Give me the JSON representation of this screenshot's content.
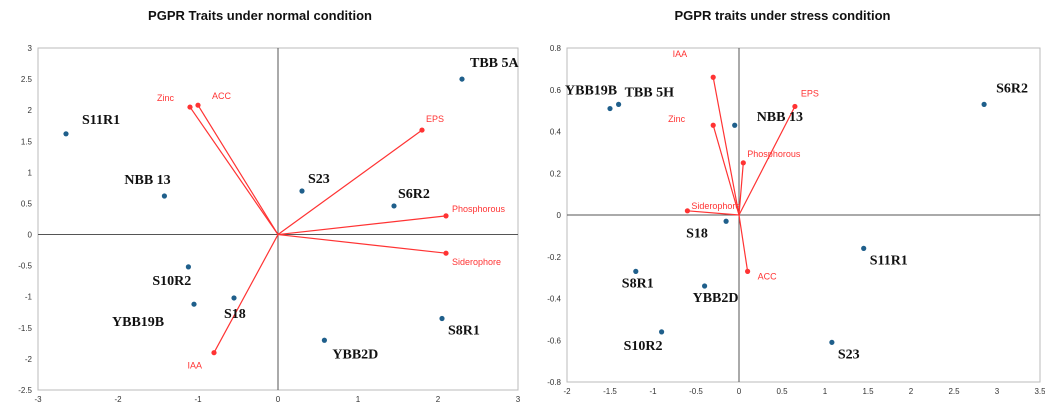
{
  "colors": {
    "points": "#1f5f8b",
    "vectors": "#ff3333",
    "axis": "#555555",
    "frame": "#bbbbbb"
  },
  "chart_data": [
    {
      "type": "scatter",
      "title": "PGPR Traits under normal condition",
      "xlim": [
        -3,
        3
      ],
      "ylim": [
        -2.5,
        3
      ],
      "xticks": [
        -3,
        -2,
        -1,
        0,
        1,
        2,
        3
      ],
      "yticks": [
        3,
        2.5,
        2,
        1.5,
        1,
        0.5,
        0,
        -0.5,
        -1,
        -1.5,
        -2,
        -2.5
      ],
      "xtick_labels": [
        "-3",
        "-2",
        "-1",
        "0",
        "1",
        "2",
        "3"
      ],
      "ytick_labels": [
        "3",
        "2.5",
        "2",
        "1.5",
        "1",
        "0.5",
        "0",
        "-0.5",
        "-1",
        "-1.5",
        "-2",
        "-2.5"
      ],
      "grid": false,
      "points": [
        {
          "label": "TBB 5A",
          "x": 2.3,
          "y": 2.5
        },
        {
          "label": "S11R1",
          "x": -2.65,
          "y": 1.62
        },
        {
          "label": "NBB 13",
          "x": -1.42,
          "y": 0.62
        },
        {
          "label": "S23",
          "x": 0.3,
          "y": 0.7
        },
        {
          "label": "S6R2",
          "x": 1.45,
          "y": 0.46
        },
        {
          "label": "S10R2",
          "x": -1.12,
          "y": -0.52
        },
        {
          "label": "YBB19B",
          "x": -1.05,
          "y": -1.12
        },
        {
          "label": "S18",
          "x": -0.55,
          "y": -1.02
        },
        {
          "label": "S8R1",
          "x": 2.05,
          "y": -1.35
        },
        {
          "label": "YBB2D",
          "x": 0.58,
          "y": -1.7
        }
      ],
      "vectors": [
        {
          "label": "Zinc",
          "x": -1.1,
          "y": 2.05
        },
        {
          "label": "ACC",
          "x": -1.0,
          "y": 2.08
        },
        {
          "label": "EPS",
          "x": 1.8,
          "y": 1.68
        },
        {
          "label": "Phosphorous",
          "x": 2.1,
          "y": 0.3
        },
        {
          "label": "Siderophore",
          "x": 2.1,
          "y": -0.3
        },
        {
          "label": "IAA",
          "x": -0.8,
          "y": -1.9
        }
      ]
    },
    {
      "type": "scatter",
      "title": "PGPR traits under stress condition",
      "xlim": [
        -2,
        3.5
      ],
      "ylim": [
        -0.8,
        0.8
      ],
      "xticks": [
        -2,
        -1.5,
        -1,
        -0.5,
        0,
        0.5,
        1,
        1.5,
        2,
        2.5,
        3,
        3.5
      ],
      "yticks": [
        0.8,
        0.6,
        0.4,
        0.2,
        0,
        -0.2,
        -0.4,
        -0.6,
        -0.8
      ],
      "xtick_labels": [
        "-2",
        "-1.5",
        "-1",
        "-0.5",
        "0",
        "0.5",
        "1",
        "1.5",
        "2",
        "2.5",
        "3",
        "3.5"
      ],
      "ytick_labels": [
        "0.8",
        "0.6",
        "0.4",
        "0.2",
        "0",
        "-0.2",
        "-0.4",
        "-0.6",
        "-0.8"
      ],
      "grid": false,
      "points": [
        {
          "label": "YBB19B",
          "x": -1.5,
          "y": 0.51
        },
        {
          "label": "TBB 5H",
          "x": -1.4,
          "y": 0.53
        },
        {
          "label": "NBB 13",
          "x": -0.05,
          "y": 0.43
        },
        {
          "label": "S6R2",
          "x": 2.85,
          "y": 0.53
        },
        {
          "label": "S18",
          "x": -0.15,
          "y": -0.03
        },
        {
          "label": "S11R1",
          "x": 1.45,
          "y": -0.16
        },
        {
          "label": "S8R1",
          "x": -1.2,
          "y": -0.27
        },
        {
          "label": "YBB2D",
          "x": -0.4,
          "y": -0.34
        },
        {
          "label": "S10R2",
          "x": -0.9,
          "y": -0.56
        },
        {
          "label": "S23",
          "x": 1.08,
          "y": -0.61
        }
      ],
      "vectors": [
        {
          "label": "IAA",
          "x": -0.3,
          "y": 0.66
        },
        {
          "label": "EPS",
          "x": 0.65,
          "y": 0.52
        },
        {
          "label": "Zinc",
          "x": -0.3,
          "y": 0.43
        },
        {
          "label": "Phosphorous",
          "x": 0.05,
          "y": 0.25
        },
        {
          "label": "Siderophore",
          "x": -0.6,
          "y": 0.02
        },
        {
          "label": "ACC",
          "x": 0.1,
          "y": -0.27
        }
      ]
    }
  ]
}
